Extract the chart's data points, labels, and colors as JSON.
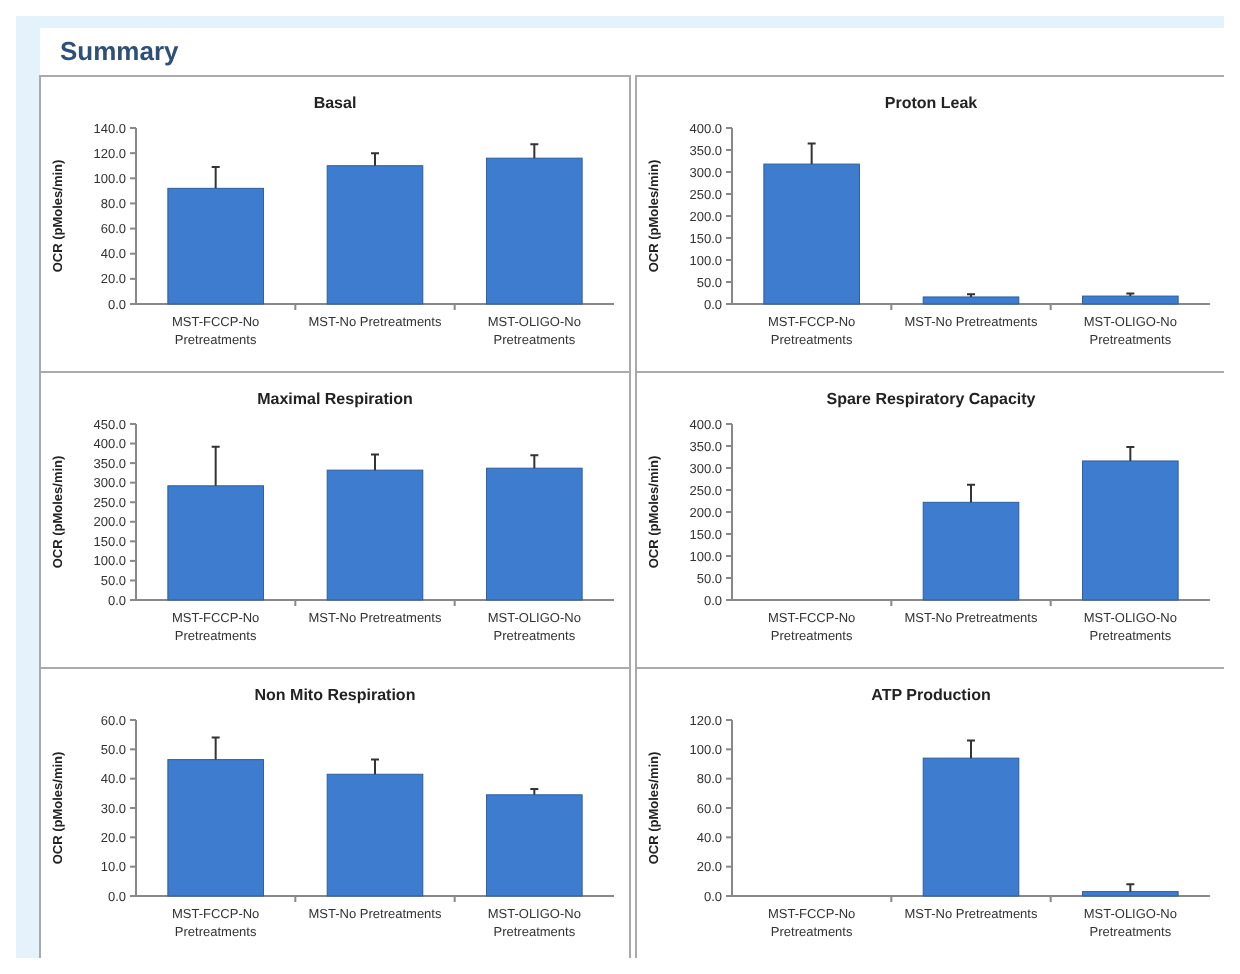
{
  "chart_data": [
    {
      "type": "bar",
      "title": "Basal",
      "ylabel": "OCR (pMoles/min)",
      "annotations": [
        "Summary"
      ],
      "categories": [
        "MST-FCCP-No Pretreatments",
        "MST-No Pretreatments",
        "MST-OLIGO-No Pretreatments"
      ],
      "values": [
        92,
        110,
        116
      ],
      "errors": [
        [
          92,
          109
        ],
        [
          110,
          120
        ],
        [
          116,
          127
        ]
      ],
      "color": "#3d7ccf",
      "ylim": [
        0,
        140
      ],
      "yticks": [
        {
          "value": 0,
          "label": "0.0"
        },
        {
          "value": 20,
          "label": "20.0"
        },
        {
          "value": 40,
          "label": "40.0"
        },
        {
          "value": 60,
          "label": "60.0"
        },
        {
          "value": 80,
          "label": "80.0"
        },
        {
          "value": 100,
          "label": "100.0"
        },
        {
          "value": 120,
          "label": "120.0"
        },
        {
          "value": 140,
          "label": "140.0"
        }
      ]
    },
    {
      "type": "bar",
      "title": "Proton Leak",
      "ylabel": "OCR (pMoles/min)",
      "categories": [
        "MST-FCCP-No Pretreatments",
        "MST-No Pretreatments",
        "MST-OLIGO-No Pretreatments"
      ],
      "values": [
        318,
        16,
        18
      ],
      "errors": [
        [
          318,
          365
        ],
        [
          16,
          22
        ],
        [
          18,
          24
        ]
      ],
      "color": "#3d7ccf",
      "ylim": [
        0,
        400
      ],
      "yticks": [
        {
          "value": 0,
          "label": "0.0"
        },
        {
          "value": 50,
          "label": "50.0"
        },
        {
          "value": 100,
          "label": "100.0"
        },
        {
          "value": 150,
          "label": "150.0"
        },
        {
          "value": 200,
          "label": "200.0"
        },
        {
          "value": 250,
          "label": "250.0"
        },
        {
          "value": 300,
          "label": "300.0"
        },
        {
          "value": 350,
          "label": "350.0"
        },
        {
          "value": 400,
          "label": "400.0"
        }
      ]
    },
    {
      "type": "bar",
      "title": "Maximal Respiration",
      "ylabel": "OCR (pMoles/min)",
      "categories": [
        "MST-FCCP-No Pretreatments",
        "MST-No Pretreatments",
        "MST-OLIGO-No Pretreatments"
      ],
      "values": [
        292,
        332,
        337
      ],
      "errors": [
        [
          292,
          392
        ],
        [
          332,
          372
        ],
        [
          337,
          370
        ]
      ],
      "color": "#3d7ccf",
      "ylim": [
        0,
        450
      ],
      "yticks": [
        {
          "value": 0,
          "label": "0.0"
        },
        {
          "value": 50,
          "label": "50.0"
        },
        {
          "value": 100,
          "label": "100.0"
        },
        {
          "value": 150,
          "label": "150.0"
        },
        {
          "value": 200,
          "label": "200.0"
        },
        {
          "value": 250,
          "label": "250.0"
        },
        {
          "value": 300,
          "label": "300.0"
        },
        {
          "value": 350,
          "label": "350.0"
        },
        {
          "value": 400,
          "label": "400.0"
        },
        {
          "value": 450,
          "label": "450.0"
        }
      ]
    },
    {
      "type": "bar",
      "title": "Spare Respiratory Capacity",
      "ylabel": "OCR (pMoles/min)",
      "categories": [
        "MST-FCCP-No Pretreatments",
        "MST-No Pretreatments",
        "MST-OLIGO-No Pretreatments"
      ],
      "values": [
        null,
        222,
        316
      ],
      "errors": [
        null,
        [
          222,
          262
        ],
        [
          316,
          348
        ]
      ],
      "color": "#3d7ccf",
      "ylim": [
        0,
        400
      ],
      "yticks": [
        {
          "value": 0,
          "label": "0.0"
        },
        {
          "value": 50,
          "label": "50.0"
        },
        {
          "value": 100,
          "label": "100.0"
        },
        {
          "value": 150,
          "label": "150.0"
        },
        {
          "value": 200,
          "label": "200.0"
        },
        {
          "value": 250,
          "label": "250.0"
        },
        {
          "value": 300,
          "label": "300.0"
        },
        {
          "value": 350,
          "label": "350.0"
        },
        {
          "value": 400,
          "label": "400.0"
        }
      ]
    },
    {
      "type": "bar",
      "title": "Non Mito Respiration",
      "ylabel": "OCR (pMoles/min)",
      "categories": [
        "MST-FCCP-No Pretreatments",
        "MST-No Pretreatments",
        "MST-OLIGO-No Pretreatments"
      ],
      "values": [
        46.5,
        41.5,
        34.5
      ],
      "errors": [
        [
          46.5,
          54
        ],
        [
          41.5,
          46.5
        ],
        [
          34.5,
          36.5
        ]
      ],
      "color": "#3d7ccf",
      "ylim": [
        0,
        60
      ],
      "yticks": [
        {
          "value": 0,
          "label": "0.0"
        },
        {
          "value": 10,
          "label": "10.0"
        },
        {
          "value": 20,
          "label": "20.0"
        },
        {
          "value": 30,
          "label": "30.0"
        },
        {
          "value": 40,
          "label": "40.0"
        },
        {
          "value": 50,
          "label": "50.0"
        },
        {
          "value": 60,
          "label": "60.0"
        }
      ]
    },
    {
      "type": "bar",
      "title": "ATP Production",
      "ylabel": "OCR (pMoles/min)",
      "categories": [
        "MST-FCCP-No Pretreatments",
        "MST-No Pretreatments",
        "MST-OLIGO-No Pretreatments"
      ],
      "values": [
        null,
        94,
        3
      ],
      "errors": [
        null,
        [
          94,
          106
        ],
        [
          3,
          8
        ]
      ],
      "color": "#3d7ccf",
      "ylim": [
        0,
        120
      ],
      "yticks": [
        {
          "value": 0,
          "label": "0.0"
        },
        {
          "value": 20,
          "label": "20.0"
        },
        {
          "value": 40,
          "label": "40.0"
        },
        {
          "value": 60,
          "label": "60.0"
        },
        {
          "value": 80,
          "label": "80.0"
        },
        {
          "value": 100,
          "label": "100.0"
        },
        {
          "value": 120,
          "label": "120.0"
        }
      ]
    }
  ]
}
